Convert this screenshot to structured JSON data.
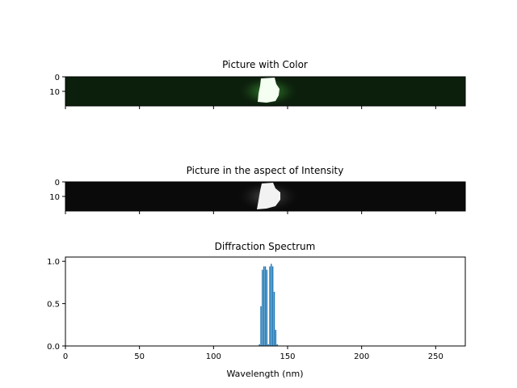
{
  "chart_data": [
    {
      "type": "heatmap",
      "title": "Picture with Color",
      "colormap": "green",
      "x_ticks": [
        0,
        50,
        100,
        150,
        200,
        250
      ],
      "x_tick_labels_visible": false,
      "y_ticks": [
        0,
        10
      ],
      "y_tick_labels": [
        "0",
        "10"
      ],
      "xlim": [
        0,
        270
      ],
      "ylim": [
        20,
        0
      ],
      "bright_region": {
        "x": [
          131,
          143
        ],
        "y": [
          0,
          20
        ]
      }
    },
    {
      "type": "heatmap",
      "title": "Picture in the aspect of Intensity",
      "colormap": "gray",
      "x_ticks": [
        0,
        50,
        100,
        150,
        200,
        250
      ],
      "x_tick_labels_visible": false,
      "y_ticks": [
        0,
        10
      ],
      "y_tick_labels": [
        "0",
        "10"
      ],
      "xlim": [
        0,
        270
      ],
      "ylim": [
        20,
        0
      ],
      "bright_region": {
        "x": [
          131,
          143
        ],
        "y": [
          0,
          20
        ]
      }
    },
    {
      "type": "bar",
      "title": "Diffraction Spectrum",
      "xlabel": "Wavelength (nm)",
      "ylabel": "",
      "xlim": [
        0,
        270
      ],
      "ylim": [
        0,
        1.05
      ],
      "x_ticks": [
        0,
        50,
        100,
        150,
        200,
        250
      ],
      "x_tick_labels": [
        "0",
        "50",
        "100",
        "150",
        "200",
        "250"
      ],
      "y_ticks": [
        0,
        0.5,
        1.0
      ],
      "y_tick_labels": [
        "0.0",
        "0.5",
        "1.0"
      ],
      "bar_color": "#1f77b4",
      "x": [
        131,
        132,
        133,
        134,
        135,
        136,
        137,
        138,
        139,
        140,
        141,
        142,
        143
      ],
      "values": [
        0.02,
        0.47,
        0.9,
        0.94,
        0.94,
        0.9,
        0.02,
        0.94,
        0.97,
        0.94,
        0.64,
        0.19,
        0.02
      ]
    }
  ]
}
